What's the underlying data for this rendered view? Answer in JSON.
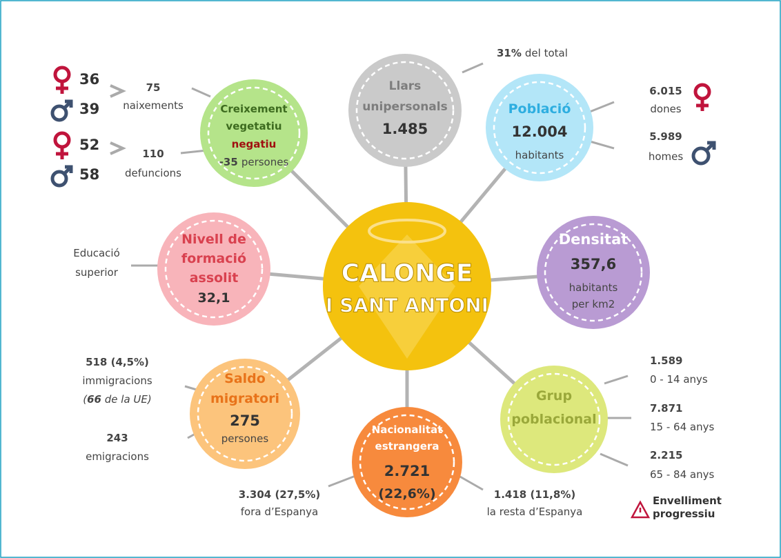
{
  "center": {
    "line1": "CALONGE",
    "line2": "I SANT ANTONI"
  },
  "creixement": {
    "title": [
      "Creixement",
      "vegetatiu"
    ],
    "emphasis": "negatiu",
    "value": "-35",
    "unit": "persones",
    "births": {
      "female": "36",
      "male": "39",
      "total": "75",
      "label": "naixements"
    },
    "deaths": {
      "female": "52",
      "male": "58",
      "total": "110",
      "label": "defuncions"
    }
  },
  "llars": {
    "title": [
      "Llars",
      "unipersonals"
    ],
    "value": "1.485",
    "note": [
      "31%",
      "del total"
    ]
  },
  "poblacio": {
    "title": "Població",
    "value": "12.004",
    "unit": "habitants",
    "women": {
      "value": "6.015",
      "label": "dones"
    },
    "men": {
      "value": "5.989",
      "label": "homes"
    }
  },
  "densitat": {
    "title": "Densitat",
    "value": "357,6",
    "unit": [
      "habitants",
      "per km2"
    ]
  },
  "grup": {
    "title": [
      "Grup",
      "poblacional"
    ],
    "groups": [
      {
        "value": "1.589",
        "label": "0 - 14 anys"
      },
      {
        "value": "7.871",
        "label": "15 - 64 anys"
      },
      {
        "value": "2.215",
        "label": "65 - 84 anys"
      }
    ],
    "warning": [
      "Envelliment",
      "progressiu"
    ]
  },
  "nacionalitat": {
    "title": [
      "Nacionalitat",
      "estrangera"
    ],
    "value": "2.721",
    "pct": "(22,6%)",
    "left": {
      "value": "3.304 (27,5%)",
      "label": "fora d’Espanya"
    },
    "right": {
      "value": "1.418 (11,8%)",
      "label": "la resta d’Espanya"
    }
  },
  "saldo": {
    "title": [
      "Saldo",
      "migratori"
    ],
    "value": "275",
    "unit": "persones",
    "immigration": {
      "value": "518 (4,5%)",
      "label": "immigracions",
      "note": [
        "(",
        "66",
        " de la UE)"
      ]
    },
    "emigration": {
      "value": "243",
      "label": "emigracions"
    }
  },
  "formacio": {
    "title": [
      "Nivell de",
      "formació",
      "assolit"
    ],
    "value": "32,1",
    "side": [
      "Educació",
      "superior"
    ]
  }
}
